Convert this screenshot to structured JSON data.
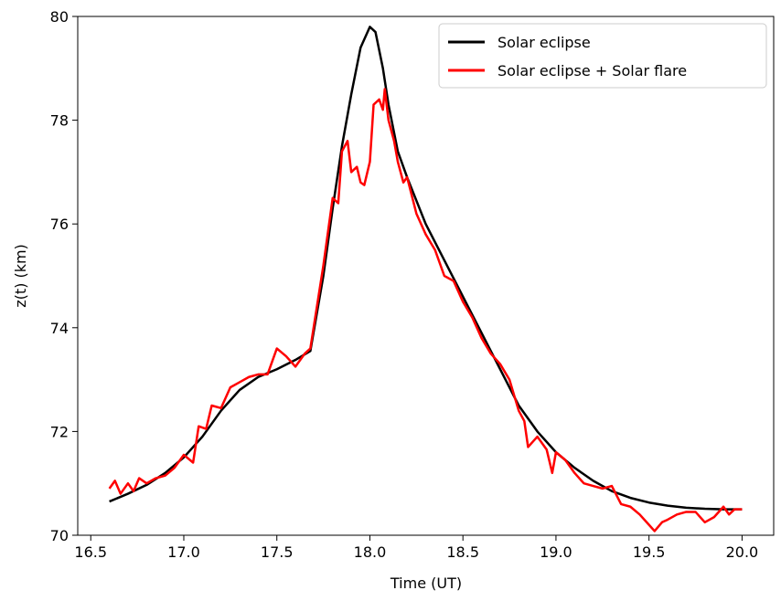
{
  "chart_data": {
    "type": "line",
    "xlabel": "Time (UT)",
    "ylabel": "z(t) (km)",
    "xlim": [
      16.43,
      20.17
    ],
    "ylim": [
      70,
      80
    ],
    "xticks": [
      {
        "value": 16.5,
        "label": "16.5"
      },
      {
        "value": 17,
        "label": "17.0"
      },
      {
        "value": 17.5,
        "label": "17.5"
      },
      {
        "value": 18,
        "label": "18.0"
      },
      {
        "value": 18.5,
        "label": "18.5"
      },
      {
        "value": 19,
        "label": "19.0"
      },
      {
        "value": 19.5,
        "label": "19.5"
      },
      {
        "value": 20,
        "label": "20.0"
      }
    ],
    "yticks": [
      70,
      72,
      74,
      76,
      78,
      80
    ],
    "legend": "upper right",
    "series": [
      {
        "name": "Solar eclipse",
        "color": "#000000",
        "x": [
          16.6,
          16.7,
          16.8,
          16.9,
          17.0,
          17.1,
          17.2,
          17.3,
          17.4,
          17.5,
          17.6,
          17.68,
          17.75,
          17.8,
          17.85,
          17.9,
          17.95,
          18.0,
          18.03,
          18.07,
          18.1,
          18.15,
          18.2,
          18.3,
          18.4,
          18.5,
          18.6,
          18.7,
          18.8,
          18.9,
          19.0,
          19.1,
          19.2,
          19.3,
          19.4,
          19.5,
          19.6,
          19.7,
          19.8,
          19.9,
          20.0
        ],
        "values": [
          70.65,
          70.8,
          70.97,
          71.2,
          71.5,
          71.9,
          72.4,
          72.8,
          73.05,
          73.2,
          73.38,
          73.55,
          75.0,
          76.3,
          77.5,
          78.5,
          79.4,
          79.8,
          79.7,
          79.0,
          78.3,
          77.4,
          76.9,
          76.0,
          75.3,
          74.6,
          73.9,
          73.2,
          72.5,
          72.0,
          71.6,
          71.3,
          71.05,
          70.85,
          70.72,
          70.63,
          70.57,
          70.53,
          70.51,
          70.5,
          70.5
        ]
      },
      {
        "name": "Solar eclipse + Solar flare",
        "color": "#ff0000",
        "x": [
          16.6,
          16.63,
          16.66,
          16.7,
          16.73,
          16.76,
          16.8,
          16.85,
          16.9,
          16.95,
          17.0,
          17.05,
          17.08,
          17.12,
          17.15,
          17.2,
          17.25,
          17.3,
          17.35,
          17.4,
          17.45,
          17.5,
          17.55,
          17.6,
          17.65,
          17.68,
          17.75,
          17.8,
          17.83,
          17.85,
          17.88,
          17.9,
          17.93,
          17.95,
          17.97,
          18.0,
          18.02,
          18.05,
          18.07,
          18.08,
          18.1,
          18.13,
          18.15,
          18.18,
          18.2,
          18.25,
          18.3,
          18.35,
          18.4,
          18.45,
          18.5,
          18.55,
          18.6,
          18.65,
          18.7,
          18.75,
          18.8,
          18.83,
          18.85,
          18.9,
          18.95,
          18.98,
          19.0,
          19.05,
          19.1,
          19.15,
          19.2,
          19.25,
          19.3,
          19.35,
          19.4,
          19.45,
          19.5,
          19.53,
          19.57,
          19.6,
          19.65,
          19.7,
          19.75,
          19.8,
          19.85,
          19.9,
          19.93,
          19.96,
          20.0
        ],
        "values": [
          70.9,
          71.05,
          70.8,
          71.0,
          70.85,
          71.1,
          71.0,
          71.1,
          71.15,
          71.3,
          71.55,
          71.4,
          72.1,
          72.05,
          72.5,
          72.45,
          72.85,
          72.95,
          73.05,
          73.1,
          73.1,
          73.6,
          73.45,
          73.25,
          73.5,
          73.6,
          75.2,
          76.5,
          76.4,
          77.4,
          77.6,
          77.0,
          77.1,
          76.8,
          76.75,
          77.2,
          78.3,
          78.4,
          78.2,
          78.6,
          78.0,
          77.6,
          77.2,
          76.8,
          76.9,
          76.2,
          75.8,
          75.5,
          75.0,
          74.9,
          74.5,
          74.2,
          73.8,
          73.5,
          73.3,
          73.0,
          72.4,
          72.2,
          71.7,
          71.9,
          71.65,
          71.2,
          71.6,
          71.45,
          71.2,
          71.0,
          70.95,
          70.9,
          70.95,
          70.6,
          70.55,
          70.4,
          70.2,
          70.08,
          70.25,
          70.3,
          70.4,
          70.45,
          70.45,
          70.25,
          70.35,
          70.55,
          70.4,
          70.5,
          70.5
        ]
      }
    ]
  }
}
